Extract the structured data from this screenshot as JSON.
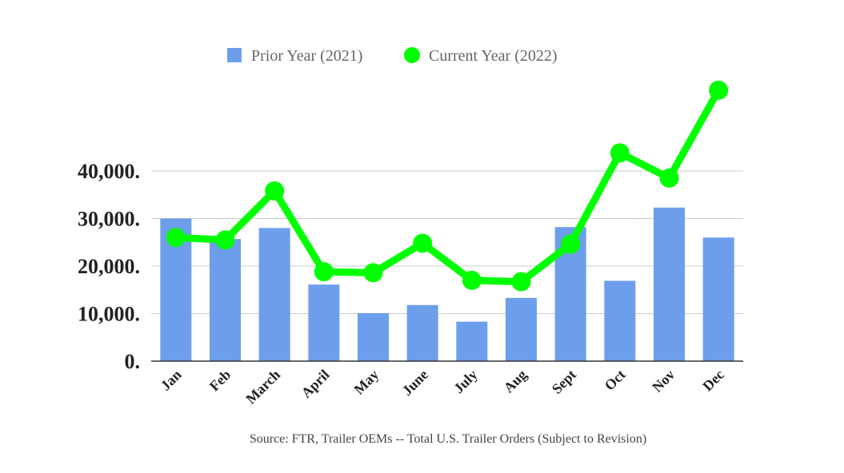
{
  "chart_data": {
    "type": "bar",
    "categories": [
      "Jan",
      "Feb",
      "March",
      "April",
      "May",
      "June",
      "July",
      "Aug",
      "Sept",
      "Oct",
      "Nov",
      "Dec"
    ],
    "series": [
      {
        "name": "Prior Year (2021)",
        "type": "bar",
        "color": "#6d9eeb",
        "values": [
          30000,
          25700,
          28000,
          16100,
          10100,
          11800,
          8300,
          13300,
          28200,
          16900,
          32300,
          26000
        ]
      },
      {
        "name": "Current Year (2022)",
        "type": "line",
        "color": "#00ff00",
        "values": [
          26000,
          25500,
          35800,
          18800,
          18600,
          24800,
          17000,
          16700,
          24600,
          43800,
          38500,
          57000
        ]
      }
    ],
    "yticks": [
      "0.",
      "10,000.",
      "20,000.",
      "30,000.",
      "40,000."
    ],
    "ytick_values": [
      0,
      10000,
      20000,
      30000,
      40000
    ],
    "ylim": [
      0,
      57000
    ],
    "grid": true,
    "legend_position": "top-center",
    "source": "Source: FTR, Trailer OEMs -- Total U.S. Trailer Orders (Subject to Revision)"
  }
}
